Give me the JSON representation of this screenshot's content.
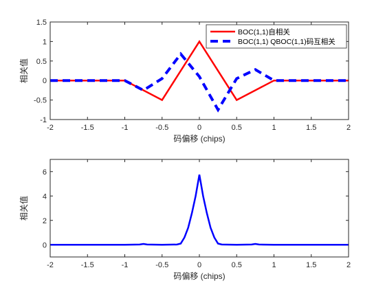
{
  "chart_data": [
    {
      "type": "line",
      "xlabel": "码偏移 (chips)",
      "ylabel": "相关值",
      "xlim": [
        -2,
        2
      ],
      "ylim": [
        -1,
        1.5
      ],
      "xticks": [
        "-2",
        "-1.5",
        "-1",
        "-0.5",
        "0",
        "0.5",
        "1",
        "1.5",
        "2"
      ],
      "yticks": [
        "-1",
        "-0.5",
        "0",
        "0.5",
        "1",
        "1.5"
      ],
      "grid": false,
      "legend_position": "top-right",
      "series": [
        {
          "name": "BOC(1,1)自相关",
          "color": "#ff0000",
          "style": "solid",
          "x": [
            -2,
            -1,
            -0.5,
            0,
            0.5,
            1,
            2
          ],
          "y": [
            0,
            0,
            -0.5,
            1,
            -0.5,
            0,
            0
          ]
        },
        {
          "name": "BOC(1,1) QBOC(1,1)码互相关",
          "color": "#0000ff",
          "style": "dashed",
          "x": [
            -2,
            -1,
            -0.75,
            -0.5,
            -0.25,
            0,
            0.25,
            0.5,
            0.75,
            1,
            2
          ],
          "y": [
            0,
            0,
            -0.25,
            0.05,
            0.68,
            0.1,
            -0.75,
            0.05,
            0.28,
            0,
            0
          ]
        }
      ]
    },
    {
      "type": "line",
      "xlabel": "码偏移 (chips)",
      "ylabel": "相关值",
      "xlim": [
        -2,
        2
      ],
      "ylim": [
        -1,
        7
      ],
      "xticks": [
        "-2",
        "-1.5",
        "-1",
        "-0.5",
        "0",
        "0.5",
        "1",
        "1.5",
        "2"
      ],
      "yticks": [
        "0",
        "2",
        "4",
        "6"
      ],
      "grid": false,
      "series": [
        {
          "color": "#0000ff",
          "style": "solid",
          "x": [
            -2,
            -1,
            -0.8,
            -0.75,
            -0.7,
            -0.5,
            -0.3,
            -0.25,
            -0.2,
            -0.15,
            -0.1,
            -0.05,
            0,
            0.05,
            0.1,
            0.15,
            0.2,
            0.25,
            0.3,
            0.5,
            0.7,
            0.75,
            0.8,
            1,
            2
          ],
          "y": [
            0,
            0,
            0.02,
            0.07,
            0.02,
            0,
            0.02,
            0.1,
            0.6,
            1.4,
            2.6,
            4.0,
            5.75,
            4.0,
            2.6,
            1.4,
            0.6,
            0.1,
            0.02,
            0,
            0.02,
            0.07,
            0.02,
            0,
            0
          ]
        }
      ]
    }
  ]
}
